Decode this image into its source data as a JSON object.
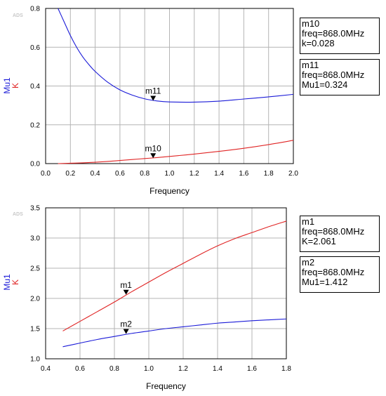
{
  "badge": "ADS",
  "chart_data": [
    {
      "type": "line",
      "xlabel": "Frequency",
      "ylabel_parts": [
        "Mu1",
        "K"
      ],
      "xlim": [
        0,
        2
      ],
      "ylim": [
        0,
        0.8
      ],
      "xticks": [
        "0.0",
        "0.2",
        "0.4",
        "0.6",
        "0.8",
        "1.0",
        "1.2",
        "1.4",
        "1.6",
        "1.8",
        "2.0"
      ],
      "yticks": [
        "0.0",
        "0.2",
        "0.4",
        "0.6",
        "0.8"
      ],
      "grid": true,
      "series": [
        {
          "name": "Mu1",
          "color": "#1b1bd8",
          "x": [
            0.1,
            0.15,
            0.2,
            0.25,
            0.3,
            0.35,
            0.4,
            0.5,
            0.6,
            0.7,
            0.8,
            0.9,
            1.0,
            1.2,
            1.4,
            1.6,
            1.8,
            2.0
          ],
          "y": [
            0.8,
            0.73,
            0.66,
            0.6,
            0.55,
            0.51,
            0.475,
            0.42,
            0.38,
            0.353,
            0.334,
            0.323,
            0.318,
            0.317,
            0.322,
            0.333,
            0.344,
            0.357
          ]
        },
        {
          "name": "K",
          "color": "#e02424",
          "x": [
            0.1,
            0.2,
            0.3,
            0.4,
            0.5,
            0.6,
            0.7,
            0.8,
            0.9,
            1.0,
            1.2,
            1.4,
            1.6,
            1.8,
            2.0
          ],
          "y": [
            0.0,
            0.002,
            0.004,
            0.007,
            0.011,
            0.016,
            0.021,
            0.026,
            0.031,
            0.037,
            0.049,
            0.063,
            0.079,
            0.098,
            0.12
          ]
        }
      ],
      "markers": [
        {
          "id": "m11",
          "x": 0.868,
          "y": 0.324
        },
        {
          "id": "m10",
          "x": 0.868,
          "y": 0.028
        }
      ],
      "marker_boxes": [
        {
          "lines": [
            "m10",
            "freq=868.0MHz",
            "k=0.028"
          ]
        },
        {
          "lines": [
            "m11",
            "freq=868.0MHz",
            "Mu1=0.324"
          ]
        }
      ]
    },
    {
      "type": "line",
      "xlabel": "Frequency",
      "ylabel_parts": [
        "Mu1",
        "K"
      ],
      "xlim": [
        0.4,
        1.8
      ],
      "ylim": [
        1.0,
        3.5
      ],
      "xticks": [
        "0.4",
        "0.6",
        "0.8",
        "1.0",
        "1.2",
        "1.4",
        "1.6",
        "1.8"
      ],
      "yticks": [
        "1.0",
        "1.5",
        "2.0",
        "2.5",
        "3.0",
        "3.5"
      ],
      "grid": true,
      "series": [
        {
          "name": "K",
          "color": "#e02424",
          "x": [
            0.5,
            0.6,
            0.7,
            0.8,
            0.9,
            1.0,
            1.1,
            1.2,
            1.3,
            1.4,
            1.5,
            1.6,
            1.7,
            1.8
          ],
          "y": [
            1.46,
            1.62,
            1.78,
            1.94,
            2.11,
            2.27,
            2.43,
            2.58,
            2.73,
            2.87,
            2.99,
            3.09,
            3.19,
            3.28
          ]
        },
        {
          "name": "Mu1",
          "color": "#1b1bd8",
          "x": [
            0.5,
            0.6,
            0.7,
            0.8,
            0.9,
            1.0,
            1.1,
            1.2,
            1.3,
            1.4,
            1.5,
            1.6,
            1.7,
            1.8
          ],
          "y": [
            1.2,
            1.26,
            1.32,
            1.37,
            1.42,
            1.46,
            1.5,
            1.53,
            1.56,
            1.59,
            1.61,
            1.63,
            1.645,
            1.66
          ]
        }
      ],
      "markers": [
        {
          "id": "m1",
          "x": 0.868,
          "y": 2.061
        },
        {
          "id": "m2",
          "x": 0.868,
          "y": 1.412
        }
      ],
      "marker_boxes": [
        {
          "lines": [
            "m1",
            "freq=868.0MHz",
            "K=2.061"
          ]
        },
        {
          "lines": [
            "m2",
            "freq=868.0MHz",
            "Mu1=1.412"
          ]
        }
      ]
    }
  ]
}
